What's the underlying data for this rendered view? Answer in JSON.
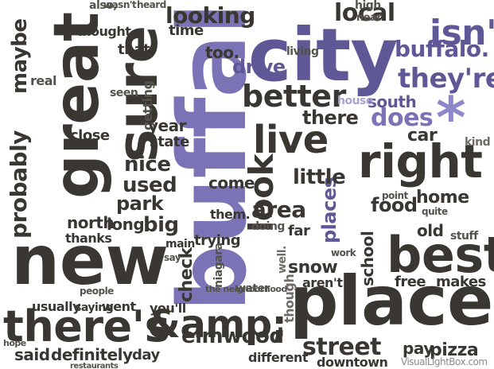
{
  "words": {
    "buffalo": "buffalo",
    "city": "city",
    "new": "new",
    "place": "place",
    "great": "great",
    "sure": "sure",
    "theres": "there's",
    "amp": "&amp;",
    "best": "best",
    "right": "right",
    "live": "live",
    "isnt": "isn't",
    "buffalo_small": "buffalo.",
    "better": "better",
    "looking": "looking",
    "local": "local",
    "street": "street",
    "pizza": "pizza",
    "elmwood": "elmwood",
    "probably": "probably",
    "maybe": "maybe",
    "look": "look",
    "theyre": "they're",
    "does": "does",
    "home": "home",
    "area": "area",
    "used": "used",
    "nice": "nice",
    "park": "park",
    "north": "north",
    "long": "long",
    "big": "big",
    "food": "food",
    "makes": "makes",
    "free": "free",
    "snow": "snow",
    "school": "school",
    "places": "places",
    "little": "little",
    "check": "check",
    "drive": "drive",
    "said": "said",
    "definitely": "definitely",
    "day": "day",
    "different": "different",
    "downtown": "downtown",
    "pay": "pay",
    "year": "year",
    "state": "state",
    "trying": "trying",
    "old": "old",
    "south": "south",
    "car": "car",
    "there": "there",
    "come": "come",
    "went": "went",
    "getting": "getting",
    "time": "time",
    "thats": "that.",
    "too": "too.",
    "thanks": "thanks",
    "thought": "thought",
    "close": "close",
    "usually": "usually",
    "saying": "saying",
    "youll": "you'll",
    "arent": "aren't",
    "though": "though.",
    "water": "water",
    "them": "them.",
    "kind": "kind",
    "house": "house",
    "doing": "doing",
    "far": "far",
    "main": "main",
    "seen": "seen",
    "living": "living",
    "really": "real",
    "wasnt": "wasn't",
    "heard": "heard",
    "also": "also,",
    "high": "high",
    "near": "near",
    "food2": "food",
    "stuff": "stuff",
    "quite": "quite",
    "point": "point",
    "work": "work",
    "say": "say",
    "people": "people",
    "hope": "hope",
    "niagara": "niagara",
    "the_neighborhood": "the neighborhood",
    "restaurants": "restaurants",
    "well": "well.",
    "credit": "VisualLightBox.com"
  },
  "colors": {
    "dark": "#3a3631",
    "purple": "#5f5897",
    "violet": "#7a73b5",
    "lavender": "#a9a2d2",
    "grey": "#6f6b66"
  }
}
